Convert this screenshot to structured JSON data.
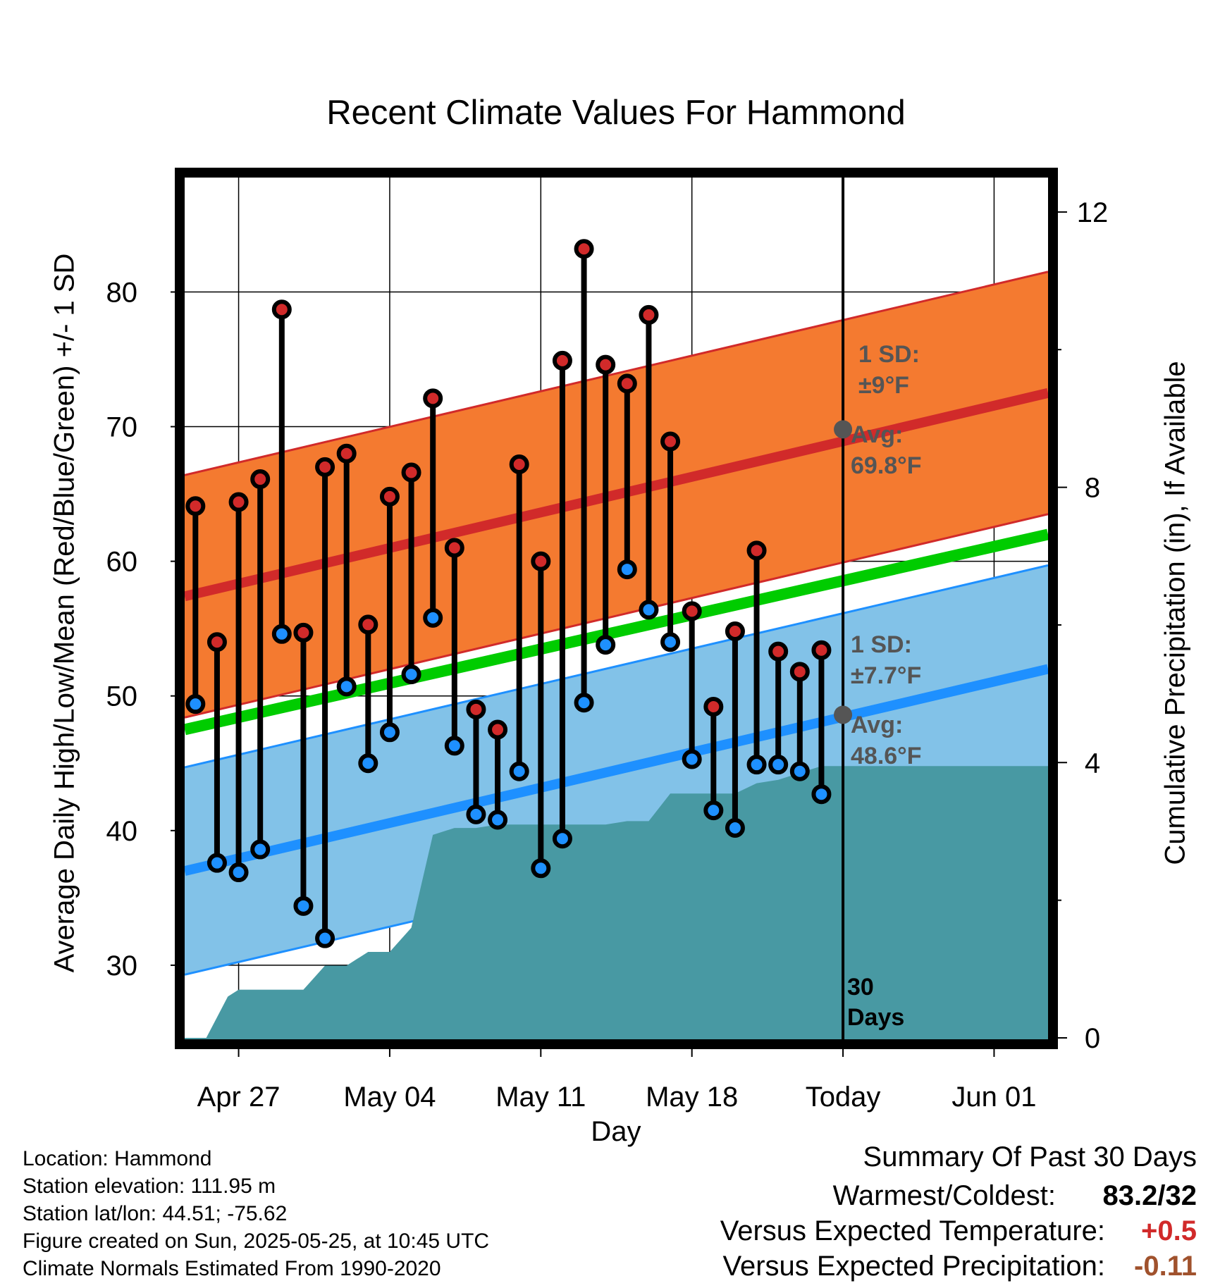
{
  "title": "Recent Climate Values For Hammond",
  "y_axis_left_label": "Average Daily High/Low/Mean (Red/Blue/Green) +/- 1 SD",
  "y_axis_right_label": "Cumulative Precipitation (in), If Available",
  "x_axis_label": "Day",
  "metadata": {
    "location": "Location: Hammond",
    "elevation": "Station elevation: 111.95 m",
    "latlon": "Station lat/lon: 44.51; -75.62",
    "created": "Figure created on Sun, 2025-05-25, at 10:45 UTC",
    "normals": "Climate Normals Estimated From 1990-2020"
  },
  "summary": {
    "title": "Summary Of Past 30 Days",
    "warmest_coldest_label": "Warmest/Coldest:",
    "warmest_coldest_value": "83.2/32",
    "temp_label": "Versus Expected Temperature:",
    "temp_value": "+0.5",
    "precip_label": "Versus Expected Precipitation:",
    "precip_value": "-0.11"
  },
  "annotations": {
    "high_sd_line1": "1 SD:",
    "high_sd_line2": "±9°F",
    "high_avg_line1": "Avg:",
    "high_avg_line2": "69.8°F",
    "low_sd_line1": "1 SD:",
    "low_sd_line2": "±7.7°F",
    "low_avg_line1": "Avg:",
    "low_avg_line2": "48.6°F",
    "days_line1": "30",
    "days_line2": "Days"
  },
  "colors": {
    "high_band": "#f47a30",
    "high_line": "#d12a2a",
    "low_band": "#82c2e8",
    "low_line": "#1e90ff",
    "mean_line": "#00cc00",
    "precip_fill": "#4899a3",
    "high_dot": "#d12a2a",
    "low_dot": "#1e90ff",
    "annotation_text": "#555555",
    "temp_value": "#d12a2a",
    "precip_value": "#a0522d"
  },
  "chart_data": {
    "type": "line",
    "x_unit": "day offset from Apr 27",
    "x_range": [
      -2.5,
      37.5
    ],
    "y_range": [
      24.5,
      88.5
    ],
    "y2_range": [
      -0.02,
      12.5
    ],
    "x_ticks": [
      {
        "label": "Apr 27",
        "x": 0
      },
      {
        "label": "May 04",
        "x": 7
      },
      {
        "label": "May 11",
        "x": 14
      },
      {
        "label": "May 18",
        "x": 21
      },
      {
        "label": "Today",
        "x": 28
      },
      {
        "label": "Jun 01",
        "x": 35
      }
    ],
    "y_ticks": [
      30,
      40,
      50,
      60,
      70,
      80
    ],
    "y2_ticks": [
      0,
      4,
      8,
      12
    ],
    "today_x": 28,
    "normal_high": {
      "x": [
        -2.5,
        37.5
      ],
      "y": [
        57.4,
        72.5
      ],
      "sd": 9
    },
    "normal_low": {
      "x": [
        -2.5,
        37.5
      ],
      "y": [
        37.0,
        52.0
      ],
      "sd": 7.7
    },
    "normal_mean": {
      "x": [
        -2.5,
        37.5
      ],
      "y": [
        47.5,
        62.0
      ]
    },
    "today_avg_high": 69.8,
    "today_avg_low": 48.6,
    "daily": {
      "x": [
        -2,
        -1,
        0,
        1,
        2,
        3,
        4,
        5,
        6,
        7,
        8,
        9,
        10,
        11,
        12,
        13,
        14,
        15,
        16,
        17,
        18,
        19,
        20,
        21,
        22,
        23,
        24,
        25,
        26,
        27
      ],
      "high": [
        64.1,
        54.0,
        64.4,
        66.1,
        78.7,
        54.7,
        67.0,
        68.0,
        55.3,
        64.8,
        66.6,
        72.1,
        61.0,
        49.0,
        47.5,
        67.2,
        60.0,
        74.9,
        83.2,
        74.6,
        73.2,
        78.3,
        68.9,
        56.3,
        49.2,
        54.8,
        60.8,
        53.3,
        51.8,
        53.4
      ],
      "low": [
        49.4,
        37.6,
        36.9,
        38.6,
        54.6,
        34.4,
        32.0,
        50.7,
        45.0,
        47.3,
        51.6,
        55.8,
        46.3,
        41.2,
        40.8,
        44.4,
        37.2,
        39.4,
        49.5,
        53.8,
        59.4,
        56.4,
        54.0,
        45.3,
        41.5,
        40.2,
        44.9,
        44.9,
        44.4,
        42.7
      ]
    },
    "precip_cumulative": {
      "x": [
        -2.5,
        -1.5,
        -1,
        -0.5,
        0,
        1,
        2,
        3,
        4,
        5,
        6,
        7,
        8,
        9,
        10,
        11,
        12,
        13,
        14,
        15,
        16,
        17,
        18,
        19,
        20,
        21,
        22,
        23,
        24,
        25,
        26,
        27,
        28,
        37.5
      ],
      "y": [
        0,
        0,
        0.3,
        0.6,
        0.7,
        0.7,
        0.7,
        0.7,
        1.05,
        1.05,
        1.25,
        1.25,
        1.6,
        2.95,
        3.05,
        3.05,
        3.1,
        3.1,
        3.1,
        3.1,
        3.1,
        3.1,
        3.15,
        3.15,
        3.55,
        3.55,
        3.55,
        3.55,
        3.7,
        3.75,
        3.85,
        3.95,
        3.95,
        3.95
      ]
    }
  }
}
